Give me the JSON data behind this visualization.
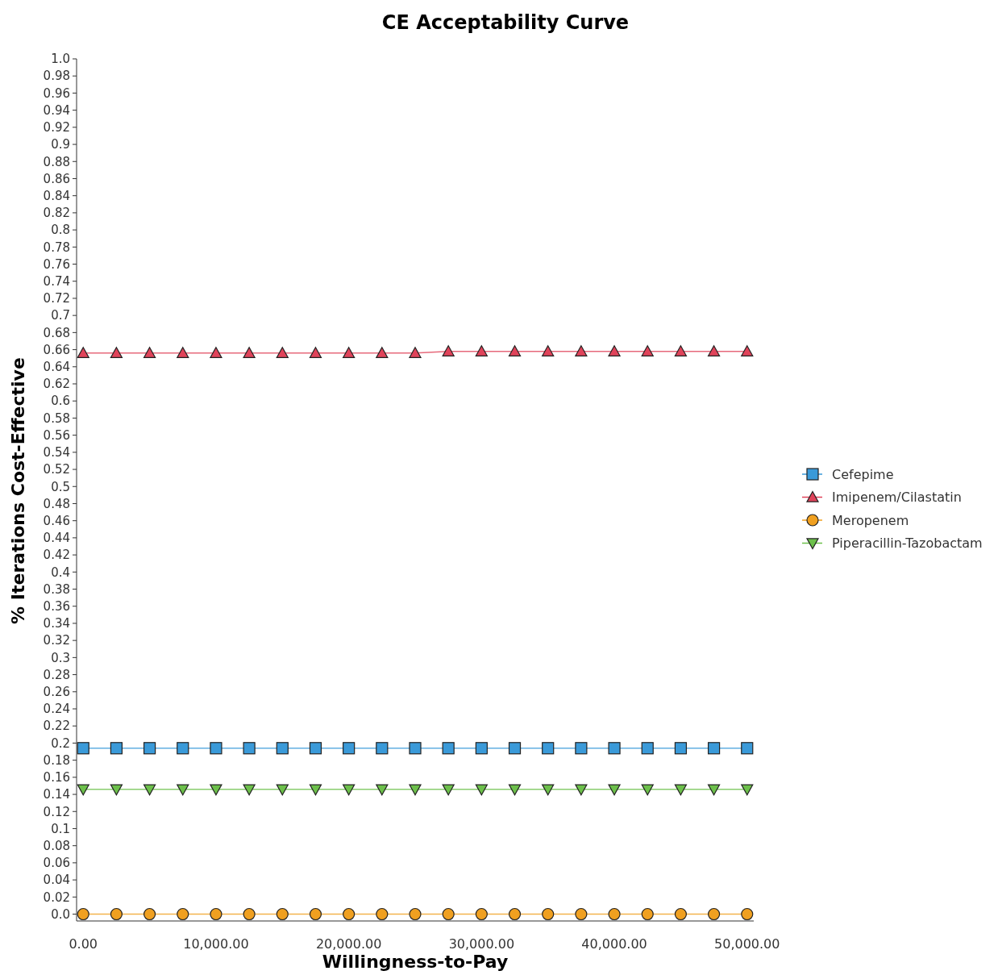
{
  "chart_data": {
    "type": "line",
    "title": "CE Acceptability Curve",
    "xlabel": "Willingness-to-Pay",
    "ylabel": "% Iterations Cost-Effective",
    "x": [
      0,
      2500,
      5000,
      7500,
      10000,
      12500,
      15000,
      17500,
      20000,
      22500,
      25000,
      27500,
      30000,
      32500,
      35000,
      37500,
      40000,
      42500,
      45000,
      47500,
      50000
    ],
    "series": [
      {
        "name": "Cefepime",
        "color": "#3a9ad9",
        "marker": "square",
        "values": [
          0.194,
          0.194,
          0.194,
          0.194,
          0.194,
          0.194,
          0.194,
          0.194,
          0.194,
          0.194,
          0.194,
          0.194,
          0.194,
          0.194,
          0.194,
          0.194,
          0.194,
          0.194,
          0.194,
          0.194,
          0.194
        ]
      },
      {
        "name": "Imipenem/Cilastatin",
        "color": "#e0435a",
        "marker": "triangle",
        "values": [
          0.656,
          0.656,
          0.656,
          0.656,
          0.656,
          0.656,
          0.656,
          0.656,
          0.656,
          0.656,
          0.656,
          0.658,
          0.658,
          0.658,
          0.658,
          0.658,
          0.658,
          0.658,
          0.658,
          0.658,
          0.658
        ]
      },
      {
        "name": "Meropenem",
        "color": "#f0a020",
        "marker": "circle",
        "values": [
          0,
          0,
          0,
          0,
          0,
          0,
          0,
          0,
          0,
          0,
          0,
          0,
          0,
          0,
          0,
          0,
          0,
          0,
          0,
          0,
          0
        ]
      },
      {
        "name": "Piperacillin-Tazobactam",
        "color": "#6cc04a",
        "marker": "triangle-down",
        "values": [
          0.146,
          0.146,
          0.146,
          0.146,
          0.146,
          0.146,
          0.146,
          0.146,
          0.146,
          0.146,
          0.146,
          0.146,
          0.146,
          0.146,
          0.146,
          0.146,
          0.146,
          0.146,
          0.146,
          0.146,
          0.146
        ]
      }
    ],
    "xlim": [
      -500,
      50500
    ],
    "xticks": [
      {
        "value": 0,
        "label": "0.00"
      },
      {
        "value": 10000,
        "label": "10,000.00"
      },
      {
        "value": 20000,
        "label": "20,000.00"
      },
      {
        "value": 30000,
        "label": "30,000.00"
      },
      {
        "value": 40000,
        "label": "40,000.00"
      },
      {
        "value": 50000,
        "label": "50,000.00"
      }
    ],
    "ylim": [
      -0.008,
      1
    ],
    "yticks": [
      {
        "value": 0,
        "label": "0.0"
      },
      0.02,
      0.04,
      0.06,
      0.08,
      0.1,
      0.12,
      0.14,
      0.16,
      0.18,
      0.2,
      0.22,
      0.24,
      0.26,
      0.28,
      0.3,
      0.32,
      0.34,
      0.36,
      0.38,
      0.4,
      0.42,
      0.44,
      0.46,
      0.48,
      0.5,
      0.52,
      0.54,
      0.56,
      0.58,
      0.6,
      0.62,
      0.64,
      0.66,
      0.68,
      0.7,
      0.72,
      0.74,
      0.76,
      0.78,
      0.8,
      0.82,
      0.84,
      0.86,
      0.88,
      0.9,
      0.92,
      0.94,
      0.96,
      0.98,
      {
        "value": 1,
        "label": "1.0"
      }
    ],
    "grid": false,
    "legend": "right",
    "line_style": "solid"
  }
}
